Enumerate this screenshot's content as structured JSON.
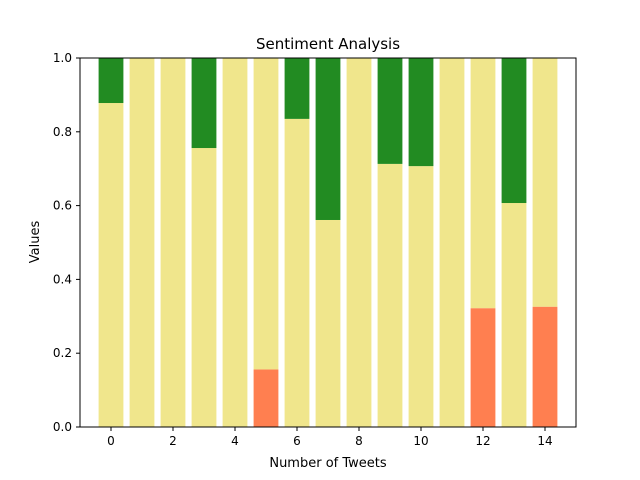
{
  "chart_data": {
    "type": "bar",
    "stacked": true,
    "title": "Sentiment Analysis",
    "xlabel": "Number of Tweets",
    "ylabel": "Values",
    "xlim": [
      -1.0,
      15.0
    ],
    "ylim": [
      0.0,
      1.0
    ],
    "xticks": [
      0,
      2,
      4,
      6,
      8,
      10,
      12,
      14
    ],
    "yticks": [
      0.0,
      0.2,
      0.4,
      0.6,
      0.8,
      1.0
    ],
    "ytick_labels": [
      "0.0",
      "0.2",
      "0.4",
      "0.6",
      "0.8",
      "1.0"
    ],
    "grid": false,
    "x": [
      0,
      1,
      2,
      3,
      4,
      5,
      6,
      7,
      8,
      9,
      10,
      11,
      12,
      13,
      14
    ],
    "series": [
      {
        "key": "negative",
        "color": "#ff7f50",
        "values": [
          0,
          0,
          0,
          0,
          0,
          0.156,
          0,
          0,
          0,
          0,
          0,
          0,
          0.322,
          0,
          0.326
        ]
      },
      {
        "key": "neutral",
        "color": "#f0e68c",
        "values": [
          0.878,
          1.0,
          1.0,
          0.756,
          1.0,
          0.844,
          0.835,
          0.561,
          1.0,
          0.713,
          0.707,
          1.0,
          0.678,
          0.607,
          0.674
        ]
      },
      {
        "key": "positive",
        "color": "#228b22",
        "values": [
          0.122,
          0,
          0,
          0.244,
          0,
          0,
          0.165,
          0.439,
          0,
          0.287,
          0.293,
          0,
          0,
          0.393,
          0
        ]
      }
    ]
  }
}
